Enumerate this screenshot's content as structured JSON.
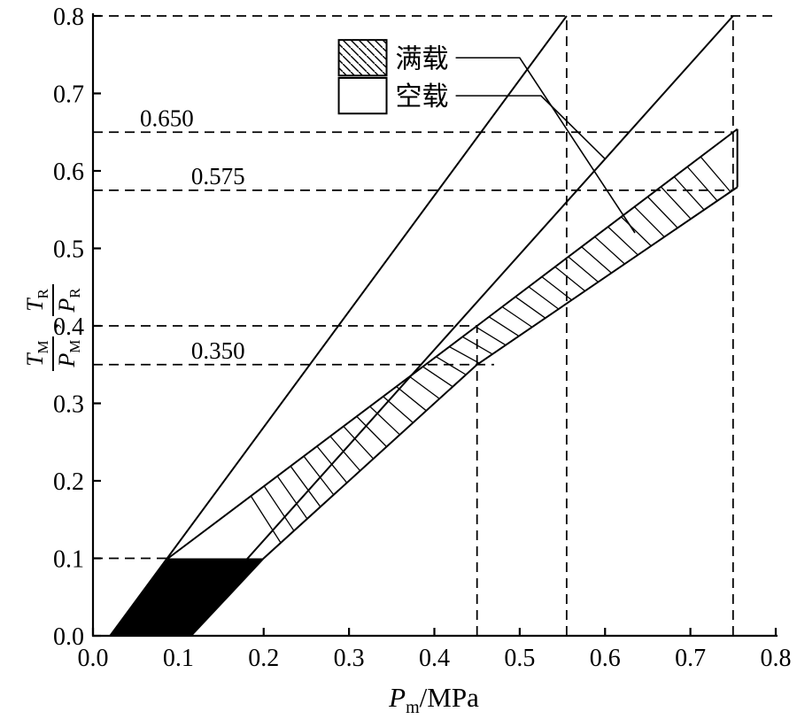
{
  "figure": {
    "background": "#ffffff",
    "ink": "#000000"
  },
  "chart_data": {
    "type": "line",
    "title": "",
    "xlim": [
      0,
      0.8
    ],
    "ylim": [
      0,
      0.8
    ],
    "grid": "off",
    "xlabel_parts": {
      "symbol": "P",
      "subscript": "m",
      "unit": "/MPa"
    },
    "ylabel_parts": {
      "frac1_num": "T",
      "frac1_num_sub": "M",
      "frac1_den": "P",
      "frac1_den_sub": "M",
      "separator": ",",
      "frac2_num": "T",
      "frac2_num_sub": "R",
      "frac2_den": "P",
      "frac2_den_sub": "R"
    },
    "x_ticks": [
      {
        "v": 0.0,
        "label": "0.0"
      },
      {
        "v": 0.1,
        "label": "0.1"
      },
      {
        "v": 0.2,
        "label": "0.2"
      },
      {
        "v": 0.3,
        "label": "0.3"
      },
      {
        "v": 0.4,
        "label": "0.4"
      },
      {
        "v": 0.5,
        "label": "0.5"
      },
      {
        "v": 0.6,
        "label": "0.6"
      },
      {
        "v": 0.7,
        "label": "0.7"
      },
      {
        "v": 0.8,
        "label": "0.8"
      }
    ],
    "y_ticks": [
      {
        "v": 0.0,
        "label": "0.0"
      },
      {
        "v": 0.1,
        "label": "0.1"
      },
      {
        "v": 0.2,
        "label": "0.2"
      },
      {
        "v": 0.3,
        "label": "0.3"
      },
      {
        "v": 0.4,
        "label": "0.4"
      },
      {
        "v": 0.5,
        "label": "0.5"
      },
      {
        "v": 0.6,
        "label": "0.6"
      },
      {
        "v": 0.7,
        "label": "0.7"
      },
      {
        "v": 0.8,
        "label": "0.8"
      }
    ],
    "series": [
      {
        "name": "empty-load-upper-boundary",
        "points": [
          [
            0.02,
            0
          ],
          [
            0.555,
            0.8
          ]
        ]
      },
      {
        "name": "empty-load-lower-boundary",
        "points": [
          [
            0.1,
            0
          ],
          [
            0.75,
            0.8
          ]
        ]
      },
      {
        "name": "full-load-upper-boundary",
        "points": [
          [
            0.088,
            0.1
          ],
          [
            0.45,
            0.4
          ],
          [
            0.755,
            0.654
          ]
        ]
      },
      {
        "name": "full-load-lower-boundary",
        "points": [
          [
            0.115,
            0
          ],
          [
            0.2,
            0.1
          ],
          [
            0.45,
            0.35
          ],
          [
            0.755,
            0.579
          ]
        ]
      },
      {
        "name": "full-load-band-right-edge",
        "points": [
          [
            0.755,
            0.654
          ],
          [
            0.755,
            0.579
          ]
        ]
      }
    ],
    "hatched_band": {
      "x_start": 0.185,
      "x_end": 0.72,
      "step": 0.0155,
      "stroke_dx": 0.035
    },
    "solid_region": {
      "points": [
        [
          0.02,
          0
        ],
        [
          0.115,
          0
        ],
        [
          0.2,
          0.1
        ],
        [
          0.088,
          0.1
        ]
      ],
      "color": "#000000"
    },
    "guides": {
      "horizontal": [
        {
          "y": 0.8,
          "x_from": 0,
          "x_to": 0.8,
          "label": "",
          "label_x": 0
        },
        {
          "y": 0.65,
          "x_from": 0,
          "x_to": 0.75,
          "label": "0.650",
          "label_x": 0.055
        },
        {
          "y": 0.575,
          "x_from": 0,
          "x_to": 0.75,
          "label": "0.575",
          "label_x": 0.115
        },
        {
          "y": 0.4,
          "x_from": 0,
          "x_to": 0.45,
          "label": "",
          "label_x": 0
        },
        {
          "y": 0.35,
          "x_from": 0,
          "x_to": 0.47,
          "label": "0.350",
          "label_x": 0.115
        },
        {
          "y": 0.1,
          "x_from": 0,
          "x_to": 0.088,
          "label": "",
          "label_x": 0
        }
      ],
      "vertical": [
        {
          "x": 0.45,
          "y_from": 0,
          "y_to": 0.4
        },
        {
          "x": 0.555,
          "y_from": 0,
          "y_to": 0.8
        },
        {
          "x": 0.75,
          "y_from": 0,
          "y_to": 0.8
        }
      ]
    },
    "legend": {
      "items": [
        {
          "label": "满载",
          "swatch": "hatched",
          "box": [
            0.288,
            0.723,
            0.344,
            0.769
          ],
          "callout": [
            [
              0.425,
              0.746
            ],
            [
              0.5,
              0.746
            ],
            [
              0.635,
              0.52
            ]
          ]
        },
        {
          "label": "空载",
          "swatch": "empty",
          "box": [
            0.288,
            0.674,
            0.344,
            0.72
          ],
          "callout": [
            [
              0.425,
              0.697
            ],
            [
              0.525,
              0.697
            ],
            [
              0.6,
              0.6155
            ]
          ]
        }
      ]
    }
  }
}
